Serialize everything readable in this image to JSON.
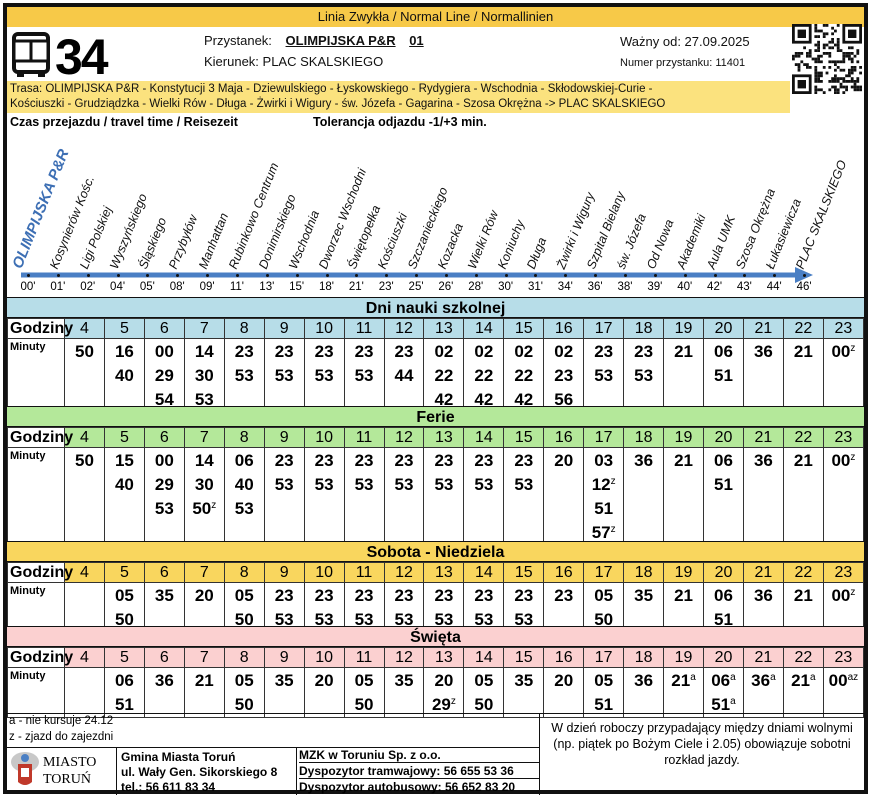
{
  "header": {
    "line_type": "Linia Zwykła  / Normal Line /  Normallinien",
    "line_number": "34",
    "stop_label": "Przystanek:",
    "stop_name": "OLIMPIJSKA P&R",
    "stop_code": "01",
    "direction": "Kierunek: PLAC SKALSKIEGO",
    "valid_from": "Ważny od: 27.09.2025",
    "stop_number": "Numer przystanku: 11401",
    "route_line1": "Trasa: OLIMPIJSKA P&R - Konstytucji 3 Maja - Dziewulskiego - Łyskowskiego - Rydygiera - Wschodnia - Skłodowskiej-Curie -",
    "route_line2": "Kościuszki - Grudziądzka - Wielki Rów - Długa - Żwirki i Wigury - św. Józefa - Gagarina - Szosa Okrężna -> PLAC SKALSKIEGO",
    "travel_time_label": "Czas przejazdu / travel time / Reisezeit",
    "tolerance": "Tolerancja odjazdu -1/+3 min.",
    "icons": [
      "bus-icon",
      "qr-code-icon"
    ]
  },
  "stops": [
    {
      "name": "OLIMPIJSKA P&R",
      "time": "00'"
    },
    {
      "name": "Kosynierów Kośc.",
      "time": "01'"
    },
    {
      "name": "Ligi Polskiej",
      "time": "02'"
    },
    {
      "name": "Wyszyńskiego",
      "time": "04'"
    },
    {
      "name": "Śląskiego",
      "time": "05'"
    },
    {
      "name": "Przybyłów",
      "time": "08'"
    },
    {
      "name": "Manhattan",
      "time": "09'"
    },
    {
      "name": "Rubinkowo Centrum",
      "time": "11'"
    },
    {
      "name": "Donimirskiego",
      "time": "13'"
    },
    {
      "name": "Wschodnia",
      "time": "15'"
    },
    {
      "name": "Dworzec Wschodni",
      "time": "18'"
    },
    {
      "name": "Świętopełka",
      "time": "21'"
    },
    {
      "name": "Kościuszki",
      "time": "23'"
    },
    {
      "name": "Szczanieckiego",
      "time": "25'"
    },
    {
      "name": "Kozacka",
      "time": "26'"
    },
    {
      "name": "Wielki Rów",
      "time": "28'"
    },
    {
      "name": "Koniuchy",
      "time": "30'"
    },
    {
      "name": "Długa",
      "time": "31'"
    },
    {
      "name": "Żwirki i Wigury",
      "time": "34'"
    },
    {
      "name": "Szpital Bielany",
      "time": "36'"
    },
    {
      "name": "św. Józefa",
      "time": "38'"
    },
    {
      "name": "Od Nowa",
      "time": "39'"
    },
    {
      "name": "Akademiki",
      "time": "40'"
    },
    {
      "name": "Aula UMK",
      "time": "42'"
    },
    {
      "name": "Szosa Okrężna",
      "time": "43'"
    },
    {
      "name": "Łukasiewicza",
      "time": "44'"
    },
    {
      "name": "PLAC SKALSKIEGO",
      "time": "46'"
    }
  ],
  "labels": {
    "hours": "Godziny",
    "minutes": "Minuty"
  },
  "hours": [
    "4",
    "5",
    "6",
    "7",
    "8",
    "9",
    "10",
    "11",
    "12",
    "13",
    "14",
    "15",
    "16",
    "17",
    "18",
    "19",
    "20",
    "21",
    "22",
    "23"
  ],
  "sections": [
    {
      "title": "Dni nauki szkolnej",
      "color": "#b7dde8",
      "minutes": [
        [
          "50"
        ],
        [
          "16",
          "40"
        ],
        [
          "00",
          "29",
          "54"
        ],
        [
          "14",
          "30",
          "53"
        ],
        [
          "23",
          "53"
        ],
        [
          "23",
          "53"
        ],
        [
          "23",
          "53"
        ],
        [
          "23",
          "53"
        ],
        [
          "23",
          "44"
        ],
        [
          "02",
          "22",
          "42"
        ],
        [
          "02",
          "22",
          "42"
        ],
        [
          "02",
          "22",
          "42"
        ],
        [
          "02",
          "23",
          "56"
        ],
        [
          "23",
          "53"
        ],
        [
          "23",
          "53"
        ],
        [
          "21"
        ],
        [
          "06",
          "51"
        ],
        [
          "36"
        ],
        [
          "21"
        ],
        [
          "00z"
        ]
      ]
    },
    {
      "title": "Ferie",
      "color": "#b4e89a",
      "minutes": [
        [
          "50"
        ],
        [
          "15",
          "40"
        ],
        [
          "00",
          "29",
          "53"
        ],
        [
          "14",
          "30",
          "50z"
        ],
        [
          "06",
          "40",
          "53"
        ],
        [
          "23",
          "53"
        ],
        [
          "23",
          "53"
        ],
        [
          "23",
          "53"
        ],
        [
          "23",
          "53"
        ],
        [
          "23",
          "53"
        ],
        [
          "23",
          "53"
        ],
        [
          "23",
          "53"
        ],
        [
          "20"
        ],
        [
          "03",
          "12z",
          "51",
          "57z"
        ],
        [
          "36"
        ],
        [
          "21"
        ],
        [
          "06",
          "51"
        ],
        [
          "36"
        ],
        [
          "21"
        ],
        [
          "00z"
        ]
      ]
    },
    {
      "title": "Sobota - Niedziela",
      "color": "#f9d65e",
      "minutes": [
        [],
        [
          "05",
          "50"
        ],
        [
          "35"
        ],
        [
          "20"
        ],
        [
          "05",
          "50"
        ],
        [
          "23",
          "53"
        ],
        [
          "23",
          "53"
        ],
        [
          "23",
          "53"
        ],
        [
          "23",
          "53"
        ],
        [
          "23",
          "53"
        ],
        [
          "23",
          "53"
        ],
        [
          "23",
          "53"
        ],
        [
          "23"
        ],
        [
          "05",
          "50"
        ],
        [
          "35"
        ],
        [
          "21"
        ],
        [
          "06",
          "51"
        ],
        [
          "36"
        ],
        [
          "21"
        ],
        [
          "00z"
        ]
      ]
    },
    {
      "title": "Święta",
      "color": "#fbd0d0",
      "minutes": [
        [],
        [
          "06",
          "51"
        ],
        [
          "36"
        ],
        [
          "21"
        ],
        [
          "05",
          "50"
        ],
        [
          "35"
        ],
        [
          "20"
        ],
        [
          "05",
          "50"
        ],
        [
          "35"
        ],
        [
          "20",
          "29z"
        ],
        [
          "05",
          "50"
        ],
        [
          "35"
        ],
        [
          "20"
        ],
        [
          "05",
          "51"
        ],
        [
          "36"
        ],
        [
          "21a"
        ],
        [
          "06a",
          "51a"
        ],
        [
          "36a"
        ],
        [
          "21a"
        ],
        [
          "00az"
        ]
      ]
    }
  ],
  "footer": {
    "note_a": "a - nie kursuje 24.12",
    "note_z": "z - zjazd do zajezdni",
    "logo_text": "MIASTO TORUŃ",
    "org_name": "Gmina Miasta Toruń",
    "org_address": "ul. Wały Gen. Sikorskiego 8",
    "org_phone": "tel.: 56 611 83 34",
    "operator": "MZK w Toruniu Sp. z o.o.",
    "tram_dispatcher": "Dyspozytor tramwajowy: 56 655 53 36",
    "bus_dispatcher": "Dyspozytor autobusowy: 56 652 83 20",
    "saturday_note": "W dzień roboczy przypadający między dniami wolnymi (np. piątek po Bożym Ciele i 2.05) obowiązuje sobotni rozkład jazdy."
  }
}
